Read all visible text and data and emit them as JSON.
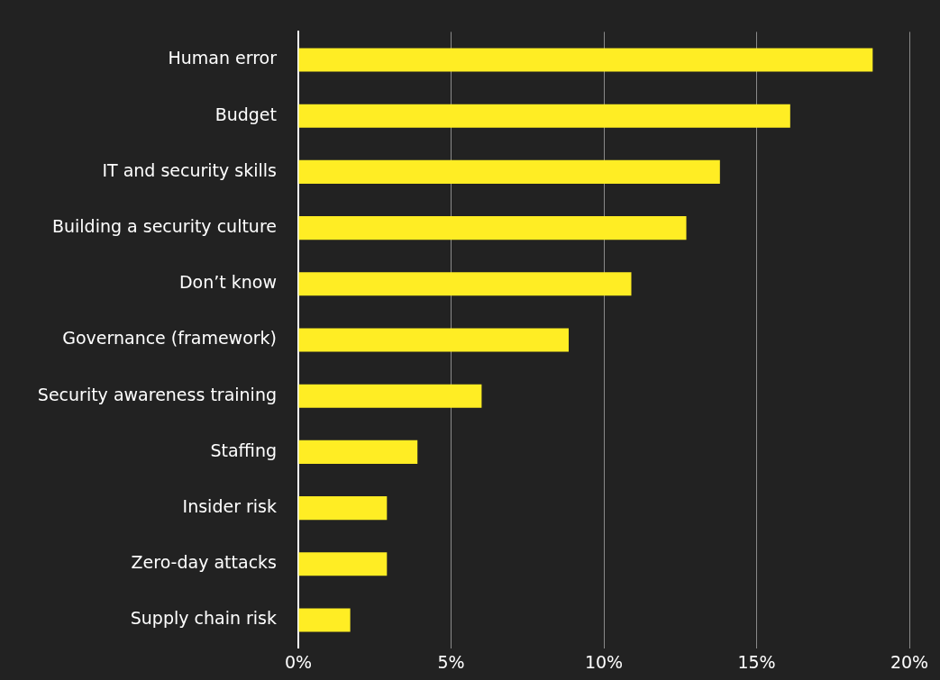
{
  "chart_data": {
    "type": "bar",
    "orientation": "horizontal",
    "categories": [
      "Human error",
      "Budget",
      "IT and security skills",
      "Building a security culture",
      "Don’t know",
      "Governance (framework)",
      "Security awareness training",
      "Staffing",
      "Insider risk",
      "Zero-day attacks",
      "Supply chain risk"
    ],
    "values": [
      18.8,
      16.1,
      13.8,
      12.7,
      10.9,
      8.85,
      6.0,
      3.9,
      2.9,
      2.9,
      1.7
    ],
    "color": "#ffed24",
    "xlim": [
      0,
      20
    ],
    "xticks": [
      {
        "value": 0,
        "label": "0%"
      },
      {
        "value": 5,
        "label": "5%"
      },
      {
        "value": 10,
        "label": "10%"
      },
      {
        "value": 15,
        "label": "15%"
      },
      {
        "value": 20,
        "label": "20%"
      }
    ],
    "grid": "x",
    "legend": false
  }
}
